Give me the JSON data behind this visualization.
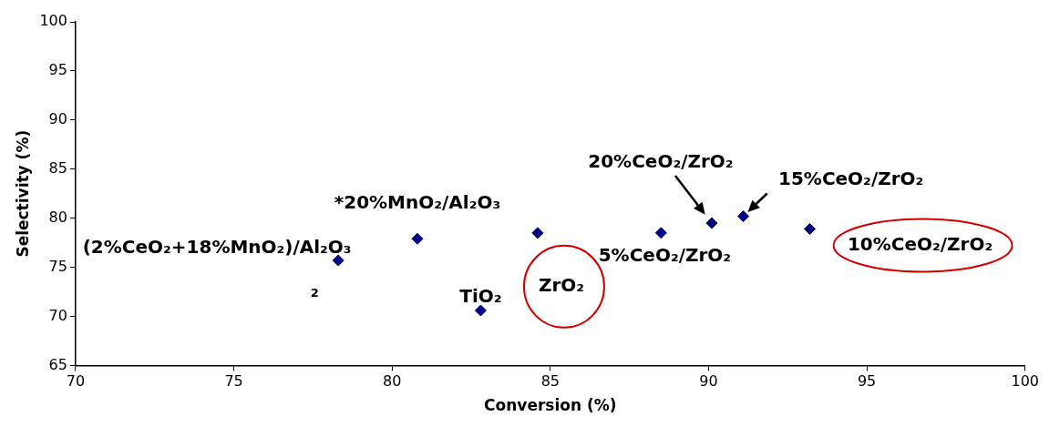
{
  "chart_data": {
    "type": "scatter",
    "xlabel": "Conversion (%)",
    "ylabel": "Selectivity (%)",
    "x": [
      78.3,
      80.8,
      82.8,
      84.6,
      88.5,
      90.1,
      91.1,
      93.2
    ],
    "values": [
      75.7,
      77.9,
      70.6,
      78.5,
      78.5,
      79.5,
      80.2,
      78.9
    ],
    "color": "#000080",
    "marker": "diamond",
    "grid": false,
    "legend": false,
    "xlim": [
      70,
      100
    ],
    "xticks": [
      70,
      75,
      80,
      85,
      90,
      95,
      100
    ],
    "ylim": [
      65,
      100
    ],
    "yticks": [
      65,
      70,
      75,
      80,
      85,
      90,
      95,
      100
    ],
    "annotations": [
      {
        "text": "(2%CeO₂+18%MnO₂)/Al₂O₃",
        "x": 78.3,
        "y": 75.7
      },
      {
        "text": "*20%MnO₂/Al₂O₃",
        "x": 80.8,
        "y": 77.9
      },
      "2",
      {
        "text": "TiO₂",
        "x": 82.8,
        "y": 70.6
      },
      {
        "text": "ZrO₂",
        "x": 84.6,
        "y": 78.5
      },
      {
        "text": "5%CeO₂/ZrO₂",
        "x": 88.5,
        "y": 78.5
      },
      {
        "text": "20%CeO₂/ZrO₂",
        "x": 90.1,
        "y": 79.5
      },
      {
        "text": "15%CeO₂/ZrO₂",
        "x": 91.1,
        "y": 80.2
      },
      {
        "text": "10%CeO₂/ZrO₂",
        "x": 93.2,
        "y": 78.9
      }
    ]
  }
}
